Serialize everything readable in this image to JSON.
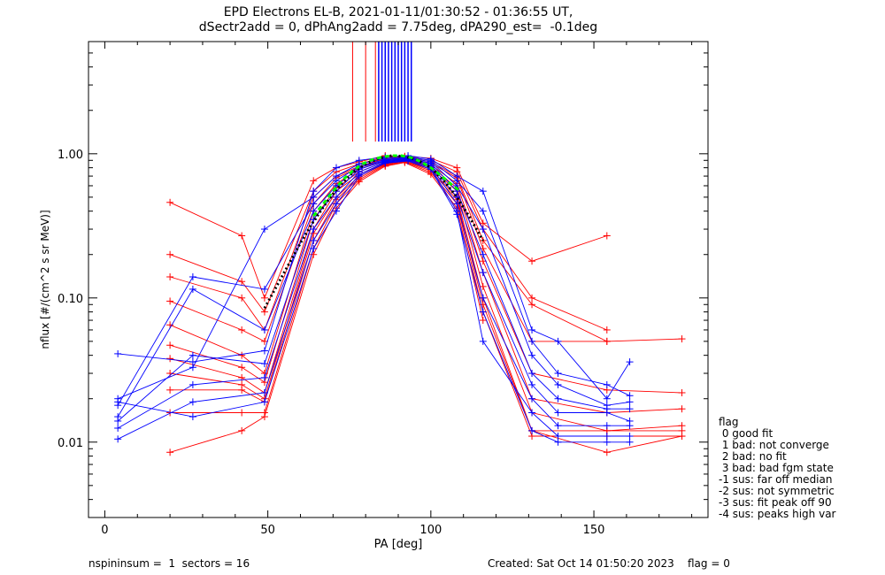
{
  "title_line1": "EPD Electrons EL-B, 2021-01-11/01:30:52 - 01:36:55 UT,",
  "title_line2": "dSectr2add = 0, dPhAng2add = 7.75deg, dPA290_est=  -0.1deg",
  "footer": {
    "left": "nspininsum =  1  sectors = 16",
    "right": "Created: Sat Oct 14 01:50:20 2023    flag = 0"
  },
  "flag_legend": {
    "title": "flag",
    "items": [
      " 0 good fit",
      " 1 bad: not converge",
      " 2 bad: no fit",
      " 3 bad: bad fgm state",
      "-1 sus: far off median",
      "-2 sus: not symmetric",
      "-3 sus: fit peak off 90",
      "-4 sus: peaks high var"
    ]
  },
  "colors": {
    "red": "#ff0000",
    "blue": "#0000ff",
    "green": "#00ff00",
    "black": "#000000"
  },
  "chart_data": {
    "type": "line",
    "xlabel": "PA [deg]",
    "ylabel": "nflux [#/(cm^2 s sr MeV)]",
    "xlim": [
      -5,
      185
    ],
    "ylim": [
      0.003,
      6.0
    ],
    "yscale": "log",
    "xticks": [
      0,
      50,
      100,
      150
    ],
    "yticks": [
      0.01,
      0.1,
      1.0
    ],
    "ytick_labels": [
      "0.01",
      "0.10",
      "1.00"
    ],
    "note": "",
    "series": [
      {
        "color": "red",
        "x": [
          20,
          42,
          49,
          64,
          71,
          78,
          86,
          92,
          100,
          108,
          116,
          131,
          154
        ],
        "y": [
          0.46,
          0.27,
          0.1,
          0.65,
          0.8,
          0.88,
          0.97,
          0.96,
          0.93,
          0.8,
          0.33,
          0.18,
          0.27
        ]
      },
      {
        "color": "red",
        "x": [
          20,
          42,
          49,
          64,
          71,
          78,
          86,
          92,
          100,
          108,
          116,
          131,
          154
        ],
        "y": [
          0.2,
          0.13,
          0.08,
          0.55,
          0.75,
          0.85,
          0.95,
          0.95,
          0.9,
          0.75,
          0.3,
          0.1,
          0.06
        ]
      },
      {
        "color": "red",
        "x": [
          20,
          42,
          49,
          64,
          71,
          78,
          86,
          92,
          100,
          108,
          116,
          131,
          154
        ],
        "y": [
          0.14,
          0.1,
          0.06,
          0.5,
          0.7,
          0.82,
          0.93,
          0.94,
          0.88,
          0.7,
          0.25,
          0.09,
          0.05
        ]
      },
      {
        "color": "red",
        "x": [
          20,
          42,
          49,
          64,
          71,
          78,
          86,
          92,
          100,
          108,
          116,
          131,
          154,
          177
        ],
        "y": [
          0.095,
          0.06,
          0.05,
          0.45,
          0.68,
          0.8,
          0.92,
          0.93,
          0.86,
          0.68,
          0.22,
          0.05,
          0.05,
          0.052
        ]
      },
      {
        "color": "red",
        "x": [
          20,
          42,
          49,
          64,
          71,
          78,
          86,
          92,
          100,
          108,
          116,
          131,
          154,
          177
        ],
        "y": [
          0.065,
          0.04,
          0.03,
          0.4,
          0.62,
          0.78,
          0.9,
          0.92,
          0.84,
          0.62,
          0.18,
          0.03,
          0.023,
          0.022
        ]
      },
      {
        "color": "red",
        "x": [
          20,
          42,
          49,
          64,
          71,
          78,
          86,
          92,
          100,
          108,
          116,
          131,
          154,
          177
        ],
        "y": [
          0.047,
          0.033,
          0.026,
          0.35,
          0.58,
          0.75,
          0.88,
          0.91,
          0.82,
          0.58,
          0.15,
          0.02,
          0.016,
          0.017
        ]
      },
      {
        "color": "red",
        "x": [
          20,
          42,
          49,
          64,
          71,
          78,
          86,
          92,
          100,
          108,
          116,
          131,
          154,
          177
        ],
        "y": [
          0.038,
          0.028,
          0.022,
          0.3,
          0.55,
          0.72,
          0.86,
          0.9,
          0.8,
          0.55,
          0.12,
          0.016,
          0.012,
          0.013
        ]
      },
      {
        "color": "red",
        "x": [
          20,
          42,
          49,
          64,
          71,
          78,
          86,
          92,
          100,
          108,
          116,
          131,
          154,
          177
        ],
        "y": [
          0.03,
          0.025,
          0.02,
          0.28,
          0.5,
          0.7,
          0.85,
          0.89,
          0.78,
          0.5,
          0.1,
          0.012,
          0.0085,
          0.011
        ]
      },
      {
        "color": "red",
        "x": [
          20,
          42,
          49,
          64,
          71,
          78,
          86,
          92,
          100,
          108,
          116,
          131,
          154,
          177
        ],
        "y": [
          0.023,
          0.023,
          0.019,
          0.25,
          0.48,
          0.68,
          0.84,
          0.89,
          0.76,
          0.48,
          0.09,
          0.012,
          0.012,
          0.012
        ]
      },
      {
        "color": "red",
        "x": [
          20,
          42,
          49,
          64,
          71,
          78,
          86,
          92,
          100,
          108,
          116,
          131,
          154,
          177
        ],
        "y": [
          0.016,
          0.016,
          0.016,
          0.22,
          0.45,
          0.66,
          0.83,
          0.88,
          0.74,
          0.45,
          0.08,
          0.011,
          0.011,
          0.011
        ]
      },
      {
        "color": "red",
        "x": [
          20,
          42,
          49,
          64,
          71,
          78,
          86,
          92,
          100,
          108,
          116
        ],
        "y": [
          0.0085,
          0.012,
          0.015,
          0.2,
          0.42,
          0.64,
          0.82,
          0.87,
          0.72,
          0.42,
          0.07
        ]
      },
      {
        "color": "blue",
        "x": [
          4,
          27,
          49,
          64,
          71,
          78,
          86,
          93,
          100,
          108,
          116,
          131,
          139,
          154,
          161
        ],
        "y": [
          0.041,
          0.036,
          0.043,
          0.55,
          0.8,
          0.9,
          0.95,
          0.97,
          0.92,
          0.7,
          0.55,
          0.06,
          0.05,
          0.02,
          0.036
        ]
      },
      {
        "color": "blue",
        "x": [
          4,
          27,
          49,
          64,
          71,
          78,
          86,
          93,
          100,
          108,
          116,
          131,
          139,
          154,
          161
        ],
        "y": [
          0.02,
          0.033,
          0.3,
          0.5,
          0.7,
          0.85,
          0.93,
          0.95,
          0.9,
          0.65,
          0.4,
          0.05,
          0.03,
          0.025,
          0.021
        ]
      },
      {
        "color": "blue",
        "x": [
          4,
          27,
          49,
          64,
          71,
          78,
          86,
          93,
          100,
          108,
          116,
          131,
          139,
          154,
          161
        ],
        "y": [
          0.018,
          0.14,
          0.115,
          0.45,
          0.65,
          0.82,
          0.91,
          0.94,
          0.88,
          0.6,
          0.3,
          0.04,
          0.025,
          0.018,
          0.019
        ]
      },
      {
        "color": "blue",
        "x": [
          4,
          27,
          49,
          64,
          71,
          78,
          86,
          93,
          100,
          108,
          116,
          131,
          139,
          154,
          161
        ],
        "y": [
          0.015,
          0.115,
          0.06,
          0.4,
          0.6,
          0.8,
          0.9,
          0.93,
          0.86,
          0.55,
          0.2,
          0.03,
          0.02,
          0.017,
          0.017
        ]
      },
      {
        "color": "blue",
        "x": [
          4,
          27,
          49,
          64,
          71,
          78,
          86,
          93,
          100,
          108,
          116,
          131,
          139,
          154,
          161
        ],
        "y": [
          0.014,
          0.04,
          0.035,
          0.35,
          0.55,
          0.78,
          0.89,
          0.92,
          0.84,
          0.5,
          0.15,
          0.025,
          0.016,
          0.016,
          0.014
        ]
      },
      {
        "color": "blue",
        "x": [
          4,
          27,
          49,
          64,
          71,
          78,
          86,
          93,
          100,
          108,
          116,
          131,
          139,
          154,
          161
        ],
        "y": [
          0.0125,
          0.025,
          0.028,
          0.3,
          0.5,
          0.75,
          0.88,
          0.91,
          0.82,
          0.45,
          0.1,
          0.02,
          0.013,
          0.013,
          0.013
        ]
      },
      {
        "color": "blue",
        "x": [
          4,
          27,
          49,
          64,
          71,
          78,
          86,
          93,
          100,
          108,
          116,
          131,
          139,
          154,
          161
        ],
        "y": [
          0.0105,
          0.019,
          0.022,
          0.25,
          0.45,
          0.72,
          0.87,
          0.9,
          0.8,
          0.4,
          0.05,
          0.016,
          0.011,
          0.011,
          0.011
        ]
      },
      {
        "color": "blue",
        "x": [
          4,
          27,
          49,
          64,
          71,
          78,
          86,
          93,
          100,
          108,
          116,
          131,
          139,
          154,
          161
        ],
        "y": [
          0.019,
          0.015,
          0.019,
          0.22,
          0.4,
          0.7,
          0.86,
          0.89,
          0.78,
          0.38,
          0.08,
          0.012,
          0.01,
          0.01,
          0.01
        ]
      }
    ],
    "fit_green": {
      "x": [
        64,
        67,
        70,
        73,
        76,
        79,
        82,
        85,
        88,
        91,
        94,
        97,
        100,
        103,
        106,
        109
      ],
      "y": [
        0.37,
        0.45,
        0.55,
        0.66,
        0.76,
        0.85,
        0.91,
        0.95,
        0.97,
        0.97,
        0.94,
        0.88,
        0.8,
        0.71,
        0.62,
        0.55
      ]
    },
    "fit_black": {
      "x": [
        49,
        55,
        60,
        64,
        68,
        72,
        76,
        80,
        84,
        88,
        92,
        96,
        100,
        104,
        108,
        112,
        116
      ],
      "y": [
        0.085,
        0.15,
        0.24,
        0.34,
        0.46,
        0.6,
        0.74,
        0.85,
        0.93,
        0.97,
        0.96,
        0.9,
        0.8,
        0.65,
        0.5,
        0.36,
        0.25
      ]
    },
    "vlines_red_x": [
      76,
      80,
      83,
      86,
      87
    ],
    "vlines_blue_x": [
      84,
      85,
      86,
      87,
      88,
      89,
      90,
      91,
      92,
      93,
      94
    ]
  }
}
